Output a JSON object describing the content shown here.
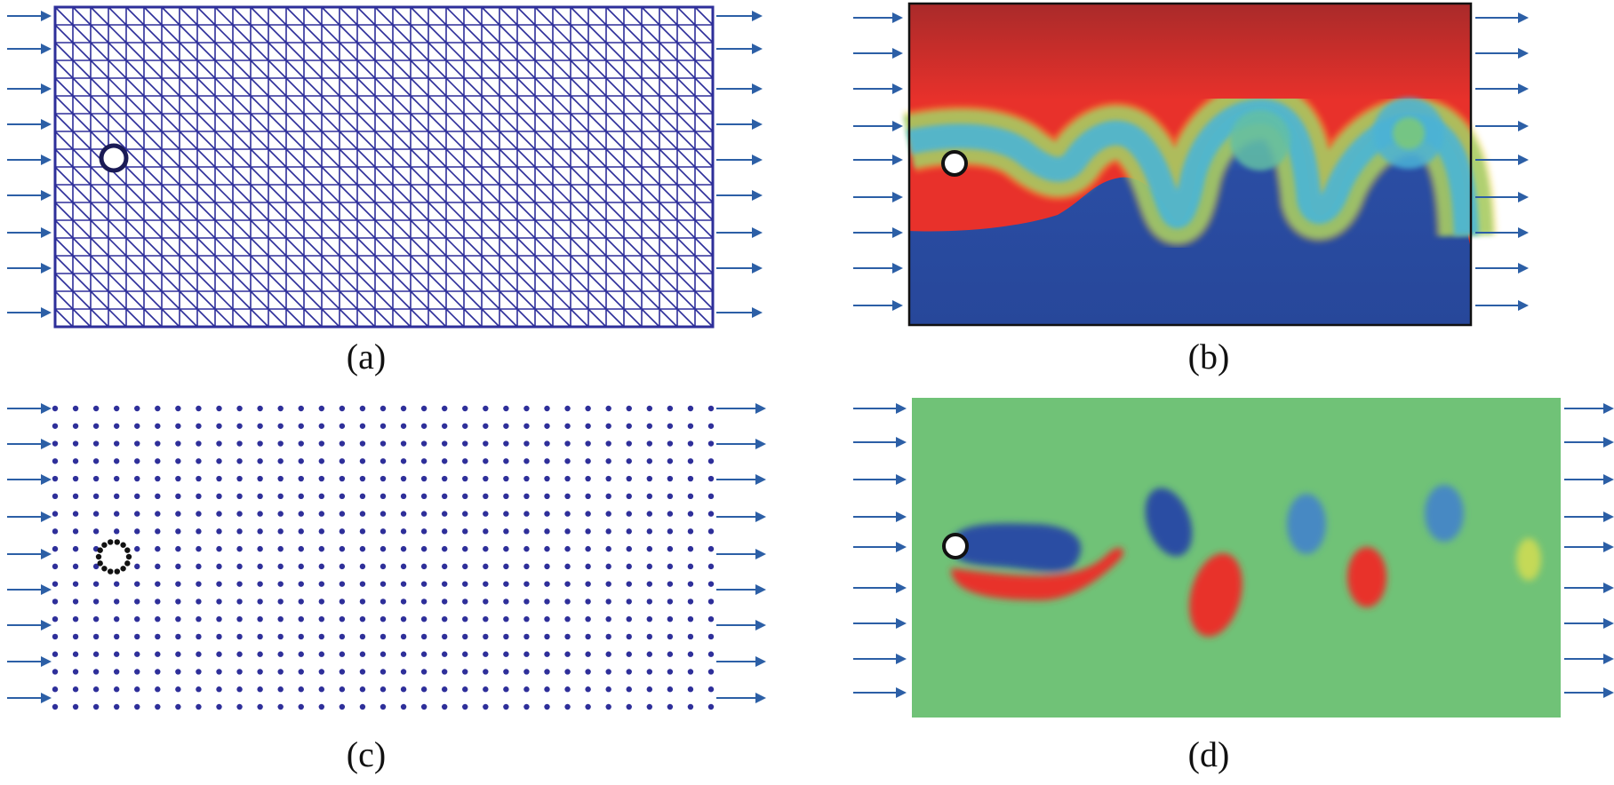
{
  "figure": {
    "panels": [
      {
        "id": "a",
        "label": "(a)"
      },
      {
        "id": "b",
        "label": "(b)"
      },
      {
        "id": "c",
        "label": "(c)"
      },
      {
        "id": "d",
        "label": "(d)"
      }
    ]
  },
  "colors": {
    "mesh": "#2e2f9a",
    "arrow": "#2c5fa6",
    "red": "#e8312b",
    "blue": "#2a4da3",
    "green": "#70c277"
  }
}
